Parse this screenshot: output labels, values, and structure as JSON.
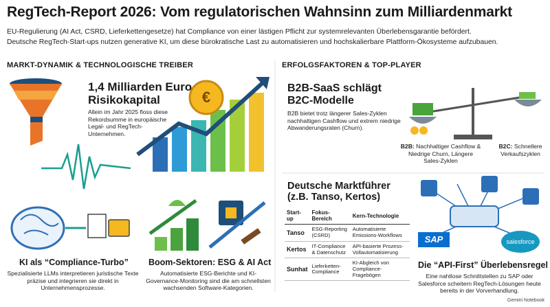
{
  "header": {
    "title": "RegTech-Report 2026: Vom regulatorischen Wahnsinn zum Milliardenmarkt",
    "subtitle": [
      "EU-Regulierung (AI Act, CSRD, Lieferkettengesetze) hat Compliance von einer lästigen Pflicht zur systemrelevanten Überlebensgarantie befördert.",
      "Deutsche RegTech-Start-ups nutzen generative KI, um diese bürokratische Last zu automatisieren und hochskalierbare Plattform-Ökosysteme aufzubauen."
    ]
  },
  "left": {
    "heading": "MARKT-DYNAMIK & TECHNOLOGISCHE TREIBER",
    "funding": {
      "title": [
        "1,4 Milliarden Euro",
        "Risikokapital"
      ],
      "text": "Allein im Jahr 2025 floss diese Rekordsumme in europäische Legal- und RegTech-Unternehmen.",
      "coin": "€"
    },
    "ki": {
      "title": "KI als “Compliance-Turbo”",
      "text": "Spezialisierte LLMs interpretieren juristische Texte präzise und integrieren sie direkt in Unternehmensprozesse."
    },
    "boom": {
      "title": "Boom-Sektoren: ESG & AI Act",
      "text": "Automatisierte ESG-Berichte und KI-Governance-Monitoring sind die am schnellsten wachsenden Software-Kategorien."
    }
  },
  "right": {
    "heading": "ERFOLGSFAKTOREN & TOP-PLAYER",
    "b2b": {
      "title": [
        "B2B-SaaS schlägt",
        "B2C-Modelle"
      ],
      "text": "B2B bietet trotz längerer Sales-Zyklen nachhaltigen Cashflow und extrem niedrige Abwanderungsraten (Churn)."
    },
    "scale": {
      "b2b_label": "B2B:",
      "b2b_text": "Nachhaltiger Cashflow & Niedrige Churn, Längere Sales-Zyklen",
      "b2c_label": "B2C:",
      "b2c_text": "Schnellere Verkaufszyklen"
    },
    "leaders": {
      "title": [
        "Deutsche Marktführer",
        "(z.B. Tanso, Kertos)"
      ],
      "table": {
        "headers": [
          "Start-up",
          "Fokus-Bereich",
          "Kern-Technologie"
        ],
        "rows": [
          [
            "Tanso",
            "ESG-Reporting (CSRD)",
            "Automatisierte Emissions-Workflows"
          ],
          [
            "Kertos",
            "IT-Compliance & Datenschutz",
            "API-basierte Prozess-Vollautomatisierung"
          ],
          [
            "Sunhat",
            "Lieferketten-Compliance",
            "KI-Abgleich von Compliance-Fragebögen"
          ]
        ]
      }
    },
    "api": {
      "title": "Die “API-First” Überlebensregel",
      "text": "Eine nahtlose Schnittstellen zu SAP oder Salesforce scheitern RegTech-Lösungen heute bereits in der Vorverhandlung.",
      "logos": [
        "SAP",
        "salesforce"
      ]
    }
  },
  "footer": "Gemini Notebook"
}
